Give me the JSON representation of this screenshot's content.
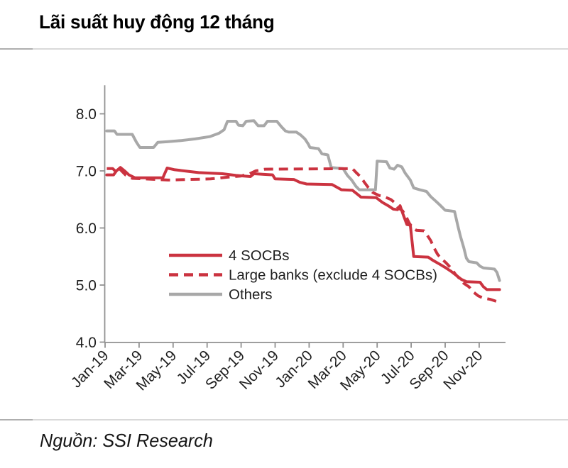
{
  "page": {
    "title": "Lãi suất huy động 12 tháng",
    "source": "Nguồn: SSI Research"
  },
  "colors": {
    "red": "#cb3340",
    "gray": "#a8a8a8",
    "axis": "#919191",
    "tick_text": "#1f1f1f",
    "divider": "#d9d9d9"
  },
  "chart_data": {
    "type": "line",
    "title": "Lãi suất huy động 12 tháng",
    "xlabel": "",
    "ylabel": "",
    "grid": false,
    "ylim": [
      4.0,
      8.5
    ],
    "yticks": [
      4.0,
      5.0,
      6.0,
      7.0,
      8.0
    ],
    "ytick_labels": [
      "4.0",
      "5.0",
      "6.0",
      "7.0",
      "8.0"
    ],
    "x_unit": "months since Jan-19",
    "xlim": [
      -0.05,
      23.6
    ],
    "xtick_positions": [
      0,
      2,
      4,
      6,
      8,
      10,
      12,
      14,
      16,
      18,
      20,
      22
    ],
    "xtick_labels": [
      "Jan-19",
      "Mar-19",
      "May-19",
      "Jul-19",
      "Sep-19",
      "Nov-19",
      "Jan-20",
      "Mar-20",
      "May-20",
      "Jul-20",
      "Sep-20",
      "Nov-20"
    ],
    "legend": {
      "position": "inside-left-middle",
      "entries": [
        {
          "label": "4 SOCBs",
          "style": "solid",
          "color": "#cb3340"
        },
        {
          "label": "Large banks (exclude 4 SOCBs)",
          "style": "dashed",
          "color": "#cb3340"
        },
        {
          "label": "Others",
          "style": "solid",
          "color": "#a8a8a8"
        }
      ]
    },
    "series": [
      {
        "name": "Others",
        "style": "solid",
        "color": "#a8a8a8",
        "points": [
          [
            0.1,
            7.7
          ],
          [
            0.55,
            7.7
          ],
          [
            0.7,
            7.64
          ],
          [
            1.6,
            7.64
          ],
          [
            1.85,
            7.5
          ],
          [
            2.05,
            7.41
          ],
          [
            2.85,
            7.41
          ],
          [
            3.1,
            7.5
          ],
          [
            3.65,
            7.51
          ],
          [
            4.45,
            7.53
          ],
          [
            5.3,
            7.56
          ],
          [
            6.15,
            7.6
          ],
          [
            6.7,
            7.66
          ],
          [
            7.0,
            7.72
          ],
          [
            7.2,
            7.87
          ],
          [
            7.7,
            7.87
          ],
          [
            7.85,
            7.8
          ],
          [
            8.1,
            7.79
          ],
          [
            8.3,
            7.87
          ],
          [
            8.75,
            7.88
          ],
          [
            9.0,
            7.79
          ],
          [
            9.35,
            7.79
          ],
          [
            9.55,
            7.87
          ],
          [
            10.1,
            7.87
          ],
          [
            10.35,
            7.78
          ],
          [
            10.6,
            7.7
          ],
          [
            10.8,
            7.68
          ],
          [
            11.25,
            7.68
          ],
          [
            11.5,
            7.63
          ],
          [
            11.75,
            7.56
          ],
          [
            11.95,
            7.47
          ],
          [
            12.05,
            7.41
          ],
          [
            12.55,
            7.39
          ],
          [
            12.75,
            7.3
          ],
          [
            13.1,
            7.28
          ],
          [
            13.3,
            7.06
          ],
          [
            14.0,
            7.04
          ],
          [
            14.25,
            6.92
          ],
          [
            14.5,
            6.84
          ],
          [
            14.75,
            6.73
          ],
          [
            14.95,
            6.67
          ],
          [
            15.9,
            6.67
          ],
          [
            16.0,
            7.17
          ],
          [
            16.55,
            7.16
          ],
          [
            16.75,
            7.05
          ],
          [
            17.0,
            7.03
          ],
          [
            17.2,
            7.1
          ],
          [
            17.45,
            7.07
          ],
          [
            17.65,
            6.96
          ],
          [
            17.95,
            6.84
          ],
          [
            18.15,
            6.7
          ],
          [
            18.5,
            6.67
          ],
          [
            18.9,
            6.64
          ],
          [
            19.15,
            6.55
          ],
          [
            19.45,
            6.47
          ],
          [
            19.7,
            6.4
          ],
          [
            20.0,
            6.31
          ],
          [
            20.55,
            6.29
          ],
          [
            20.75,
            6.03
          ],
          [
            20.9,
            5.85
          ],
          [
            21.1,
            5.65
          ],
          [
            21.25,
            5.47
          ],
          [
            21.4,
            5.41
          ],
          [
            21.85,
            5.39
          ],
          [
            22.05,
            5.33
          ],
          [
            22.25,
            5.3
          ],
          [
            22.9,
            5.28
          ],
          [
            23.05,
            5.22
          ],
          [
            23.2,
            5.08
          ]
        ]
      },
      {
        "name": "Large banks (exclude 4 SOCBs)",
        "style": "dashed",
        "color": "#cb3340",
        "points": [
          [
            0.1,
            7.04
          ],
          [
            0.45,
            7.04
          ],
          [
            0.7,
            6.97
          ],
          [
            0.9,
            7.02
          ],
          [
            1.2,
            6.93
          ],
          [
            1.6,
            6.87
          ],
          [
            3.7,
            6.84
          ],
          [
            6.2,
            6.86
          ],
          [
            7.2,
            6.89
          ],
          [
            8.0,
            6.91
          ],
          [
            8.5,
            6.95
          ],
          [
            8.85,
            7.0
          ],
          [
            9.4,
            7.03
          ],
          [
            14.55,
            7.04
          ],
          [
            14.8,
            6.96
          ],
          [
            15.05,
            6.89
          ],
          [
            15.25,
            6.8
          ],
          [
            15.5,
            6.7
          ],
          [
            15.75,
            6.62
          ],
          [
            16.1,
            6.57
          ],
          [
            16.4,
            6.55
          ],
          [
            16.8,
            6.5
          ],
          [
            17.05,
            6.44
          ],
          [
            17.25,
            6.35
          ],
          [
            17.5,
            6.3
          ],
          [
            17.7,
            6.2
          ],
          [
            17.9,
            6.08
          ],
          [
            18.1,
            6.0
          ],
          [
            18.3,
            5.96
          ],
          [
            18.75,
            5.95
          ],
          [
            18.95,
            5.87
          ],
          [
            19.15,
            5.78
          ],
          [
            19.35,
            5.65
          ],
          [
            19.55,
            5.54
          ],
          [
            19.75,
            5.47
          ],
          [
            20.05,
            5.39
          ],
          [
            20.3,
            5.31
          ],
          [
            20.6,
            5.19
          ],
          [
            20.85,
            5.11
          ],
          [
            21.1,
            5.03
          ],
          [
            21.4,
            4.97
          ],
          [
            21.65,
            4.88
          ],
          [
            21.95,
            4.81
          ],
          [
            22.25,
            4.77
          ],
          [
            22.65,
            4.75
          ],
          [
            22.95,
            4.72
          ],
          [
            23.2,
            4.7
          ]
        ]
      },
      {
        "name": "4 SOCBs",
        "style": "solid",
        "color": "#cb3340",
        "points": [
          [
            0.1,
            6.93
          ],
          [
            0.5,
            6.93
          ],
          [
            0.67,
            7.0
          ],
          [
            0.9,
            7.06
          ],
          [
            1.15,
            7.0
          ],
          [
            1.4,
            6.93
          ],
          [
            1.75,
            6.88
          ],
          [
            3.4,
            6.88
          ],
          [
            3.65,
            7.05
          ],
          [
            4.1,
            7.02
          ],
          [
            5.5,
            6.97
          ],
          [
            6.9,
            6.95
          ],
          [
            7.7,
            6.92
          ],
          [
            8.55,
            6.9
          ],
          [
            8.75,
            6.95
          ],
          [
            9.85,
            6.93
          ],
          [
            10.0,
            6.86
          ],
          [
            11.1,
            6.85
          ],
          [
            11.45,
            6.8
          ],
          [
            11.85,
            6.77
          ],
          [
            13.35,
            6.76
          ],
          [
            13.65,
            6.71
          ],
          [
            13.9,
            6.67
          ],
          [
            14.55,
            6.66
          ],
          [
            14.8,
            6.6
          ],
          [
            15.05,
            6.54
          ],
          [
            15.95,
            6.53
          ],
          [
            16.3,
            6.45
          ],
          [
            16.7,
            6.38
          ],
          [
            16.95,
            6.33
          ],
          [
            17.2,
            6.32
          ],
          [
            17.35,
            6.39
          ],
          [
            17.55,
            6.22
          ],
          [
            17.75,
            6.06
          ],
          [
            17.95,
            6.05
          ],
          [
            18.15,
            5.5
          ],
          [
            19.0,
            5.49
          ],
          [
            19.3,
            5.43
          ],
          [
            19.65,
            5.37
          ],
          [
            20.05,
            5.3
          ],
          [
            20.35,
            5.24
          ],
          [
            20.65,
            5.17
          ],
          [
            20.95,
            5.1
          ],
          [
            21.25,
            5.06
          ],
          [
            22.05,
            5.05
          ],
          [
            22.25,
            4.97
          ],
          [
            22.45,
            4.92
          ],
          [
            23.2,
            4.92
          ]
        ]
      }
    ]
  }
}
